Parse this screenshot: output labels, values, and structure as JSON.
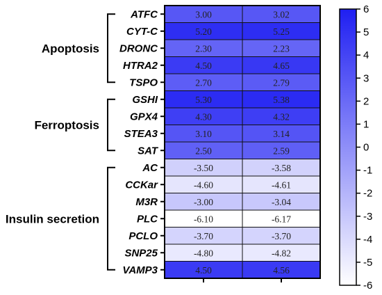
{
  "chart_data": {
    "type": "heatmap",
    "columns": 2,
    "groups": [
      {
        "name": "Apoptosis",
        "rows": [
          "ATFC",
          "CYT-C",
          "DRONC",
          "HTRA2",
          "TSPO"
        ]
      },
      {
        "name": "Ferroptosis",
        "rows": [
          "GSHI",
          "GPX4",
          "STEA3",
          "SAT"
        ]
      },
      {
        "name": "Insulin secretion",
        "rows": [
          "AC",
          "CCKar",
          "M3R",
          "PLC",
          "PCLO",
          "SNP25",
          "VAMP3"
        ]
      }
    ],
    "rows": [
      "ATFC",
      "CYT-C",
      "DRONC",
      "HTRA2",
      "TSPO",
      "GSHI",
      "GPX4",
      "STEA3",
      "SAT",
      "AC",
      "CCKar",
      "M3R",
      "PLC",
      "PCLO",
      "SNP25",
      "VAMP3"
    ],
    "values": [
      [
        3.0,
        3.02
      ],
      [
        5.2,
        5.25
      ],
      [
        2.3,
        2.23
      ],
      [
        4.5,
        4.65
      ],
      [
        2.7,
        2.79
      ],
      [
        5.3,
        5.38
      ],
      [
        4.3,
        4.32
      ],
      [
        3.1,
        3.14
      ],
      [
        2.5,
        2.59
      ],
      [
        -3.5,
        -3.58
      ],
      [
        -4.6,
        -4.61
      ],
      [
        -3.0,
        -3.04
      ],
      [
        -6.1,
        -6.17
      ],
      [
        -3.7,
        -3.7
      ],
      [
        -4.8,
        -4.82
      ],
      [
        4.5,
        4.56
      ]
    ],
    "value_labels": [
      [
        "3.00",
        "3.02"
      ],
      [
        "5.20",
        "5.25"
      ],
      [
        "2.30",
        "2.23"
      ],
      [
        "4.50",
        "4.65"
      ],
      [
        "2.70",
        "2.79"
      ],
      [
        "5.30",
        "5.38"
      ],
      [
        "4.30",
        "4.32"
      ],
      [
        "3.10",
        "3.14"
      ],
      [
        "2.50",
        "2.59"
      ],
      [
        "-3.50",
        "-3.58"
      ],
      [
        "-4.60",
        "-4.61"
      ],
      [
        "-3.00",
        "-3.04"
      ],
      [
        "-6.10",
        "-6.17"
      ],
      [
        "-3.70",
        "-3.70"
      ],
      [
        "-4.80",
        "-4.82"
      ],
      [
        "4.50",
        "4.56"
      ]
    ],
    "colorbar": {
      "range": [
        -6,
        6
      ],
      "ticks": [
        6,
        5,
        4,
        3,
        2,
        1,
        0,
        -1,
        -2,
        -3,
        -4,
        -5,
        -6
      ],
      "tick_labels": [
        "6",
        "5",
        "4",
        "3",
        "2",
        "1",
        "0",
        "-1",
        "-2",
        "-3",
        "-4",
        "-5",
        "-6"
      ],
      "low_color": "#ffffff",
      "high_color": "#1f1ff2"
    },
    "colors": {
      "border": "#000000",
      "cell_border": "#111111"
    }
  }
}
